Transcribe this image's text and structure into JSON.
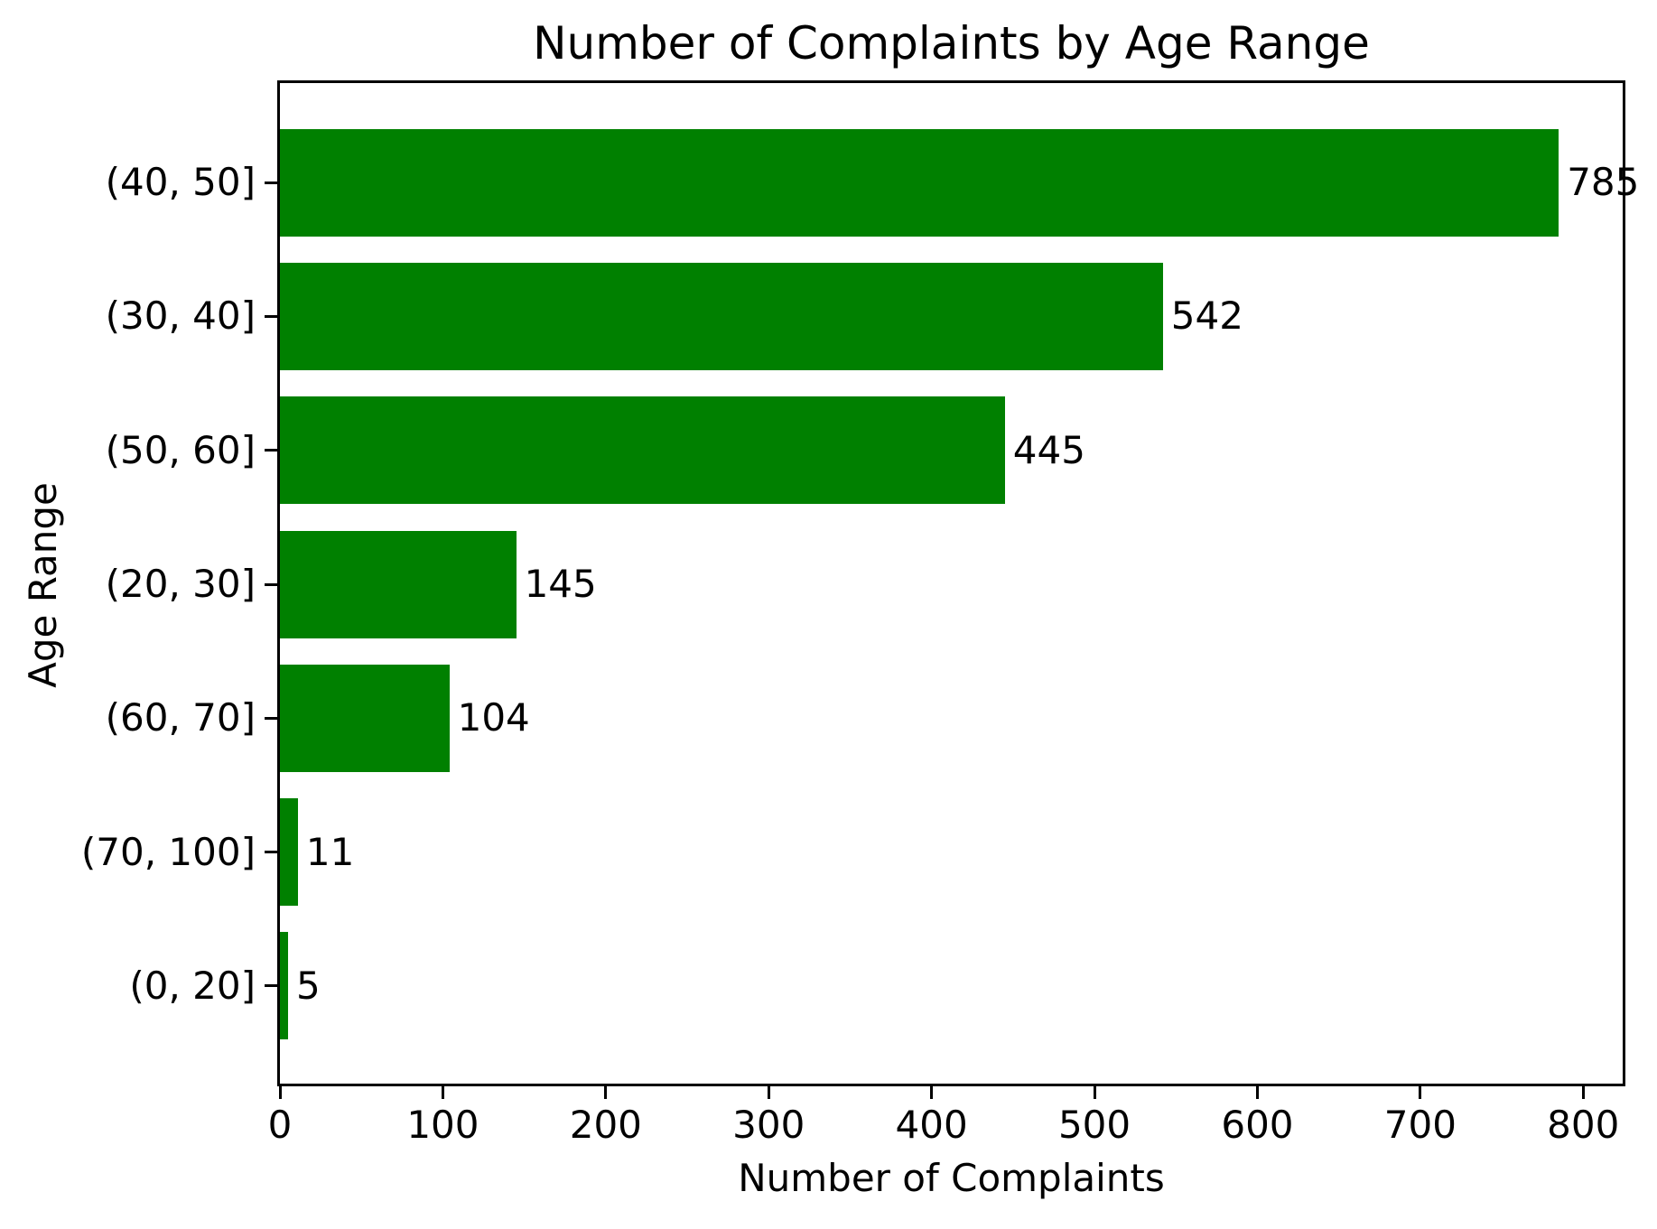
{
  "chart_data": {
    "type": "bar",
    "orientation": "horizontal",
    "title": "Number of Complaints by Age Range",
    "xlabel": "Number of Complaints",
    "ylabel": "Age Range",
    "categories": [
      "(40, 50]",
      "(30, 40]",
      "(50, 60]",
      "(20, 30]",
      "(60, 70]",
      "(70, 100]",
      "(0, 20]"
    ],
    "values": [
      785,
      542,
      445,
      145,
      104,
      11,
      5
    ],
    "bar_color": "#008000",
    "text_color": "#000000",
    "background_color": "#ffffff",
    "xlim": [
      0,
      824.25
    ],
    "xticks": [
      0,
      100,
      200,
      300,
      400,
      500,
      600,
      700,
      800
    ],
    "grid": false,
    "legend": null
  }
}
